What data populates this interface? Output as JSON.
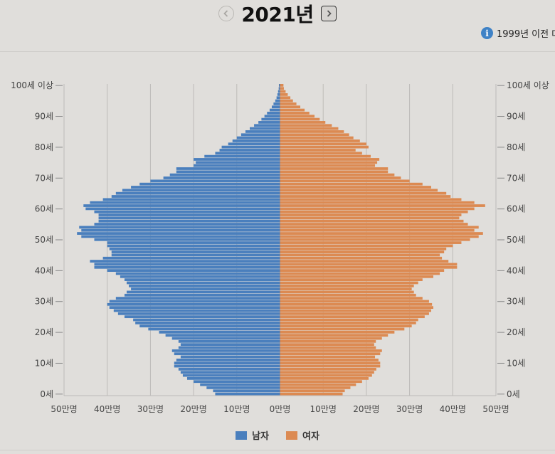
{
  "header": {
    "year_title": "2021년",
    "prev_icon": "chevron-left-circle-icon",
    "next_icon": "chevron-right-square-icon",
    "notice_text": "1999년 이전 데",
    "notice_icon": "info-icon"
  },
  "colors": {
    "male": "#4a7fbd",
    "female": "#dc8a52",
    "grid": "#bdbbb8",
    "text": "#444444"
  },
  "chart_data": {
    "type": "bar",
    "orientation": "horizontal-population-pyramid",
    "unit": "명",
    "xlim": [
      -500000,
      500000
    ],
    "x_ticks": [
      -500000,
      -400000,
      -300000,
      -200000,
      -100000,
      0,
      100000,
      200000,
      300000,
      400000,
      500000
    ],
    "x_tick_labels": [
      "50만명",
      "40만명",
      "30만명",
      "20만명",
      "10만명",
      "0만명",
      "10만명",
      "20만명",
      "30만명",
      "40만명",
      "50만명"
    ],
    "y_ticks": [
      0,
      10,
      20,
      30,
      40,
      50,
      60,
      70,
      80,
      90,
      100
    ],
    "y_tick_labels": [
      "0세",
      "10세",
      "20세",
      "30세",
      "40세",
      "50세",
      "60세",
      "70세",
      "80세",
      "90세",
      "100세 이상"
    ],
    "grid": true,
    "legend_position": "bottom-center",
    "ages": [
      0,
      1,
      2,
      3,
      4,
      5,
      6,
      7,
      8,
      9,
      10,
      11,
      12,
      13,
      14,
      15,
      16,
      17,
      18,
      19,
      20,
      21,
      22,
      23,
      24,
      25,
      26,
      27,
      28,
      29,
      30,
      31,
      32,
      33,
      34,
      35,
      36,
      37,
      38,
      39,
      40,
      41,
      42,
      43,
      44,
      45,
      46,
      47,
      48,
      49,
      50,
      51,
      52,
      53,
      54,
      55,
      56,
      57,
      58,
      59,
      60,
      61,
      62,
      63,
      64,
      65,
      66,
      67,
      68,
      69,
      70,
      71,
      72,
      73,
      74,
      75,
      76,
      77,
      78,
      79,
      80,
      81,
      82,
      83,
      84,
      85,
      86,
      87,
      88,
      89,
      90,
      91,
      92,
      93,
      94,
      95,
      96,
      97,
      98,
      99,
      100
    ],
    "series": [
      {
        "name": "남자",
        "values": [
          150000,
          155000,
          170000,
          185000,
          200000,
          215000,
          225000,
          230000,
          235000,
          245000,
          245000,
          240000,
          230000,
          245000,
          250000,
          235000,
          230000,
          235000,
          250000,
          265000,
          280000,
          305000,
          325000,
          335000,
          340000,
          360000,
          375000,
          385000,
          395000,
          400000,
          395000,
          380000,
          360000,
          355000,
          345000,
          350000,
          355000,
          360000,
          370000,
          380000,
          400000,
          430000,
          430000,
          440000,
          410000,
          390000,
          390000,
          395000,
          400000,
          400000,
          430000,
          460000,
          470000,
          460000,
          465000,
          430000,
          420000,
          420000,
          420000,
          430000,
          450000,
          455000,
          440000,
          410000,
          390000,
          380000,
          365000,
          345000,
          325000,
          300000,
          270000,
          255000,
          240000,
          240000,
          200000,
          195000,
          200000,
          175000,
          150000,
          140000,
          135000,
          120000,
          110000,
          100000,
          90000,
          80000,
          70000,
          60000,
          50000,
          43000,
          36000,
          30000,
          24000,
          19000,
          15000,
          11000,
          8000,
          6000,
          4500,
          3000,
          2500
        ]
      },
      {
        "name": "여자",
        "values": [
          145000,
          150000,
          163000,
          176000,
          190000,
          205000,
          213000,
          218000,
          223000,
          232000,
          232000,
          228000,
          220000,
          232000,
          236000,
          222000,
          218000,
          222000,
          236000,
          250000,
          265000,
          288000,
          305000,
          315000,
          320000,
          335000,
          345000,
          350000,
          355000,
          352000,
          345000,
          330000,
          315000,
          310000,
          305000,
          310000,
          320000,
          330000,
          355000,
          370000,
          380000,
          410000,
          410000,
          390000,
          375000,
          370000,
          380000,
          385000,
          400000,
          420000,
          440000,
          460000,
          470000,
          450000,
          460000,
          435000,
          425000,
          415000,
          420000,
          435000,
          450000,
          475000,
          450000,
          420000,
          395000,
          385000,
          365000,
          350000,
          330000,
          300000,
          280000,
          265000,
          250000,
          250000,
          220000,
          225000,
          230000,
          210000,
          190000,
          175000,
          205000,
          200000,
          185000,
          170000,
          160000,
          148000,
          135000,
          120000,
          105000,
          92000,
          80000,
          68000,
          57000,
          47000,
          38000,
          30000,
          24000,
          18000,
          13000,
          9000,
          8000
        ]
      }
    ]
  },
  "legend": [
    {
      "label": "남자",
      "color": "#4a7fbd"
    },
    {
      "label": "여자",
      "color": "#dc8a52"
    }
  ]
}
